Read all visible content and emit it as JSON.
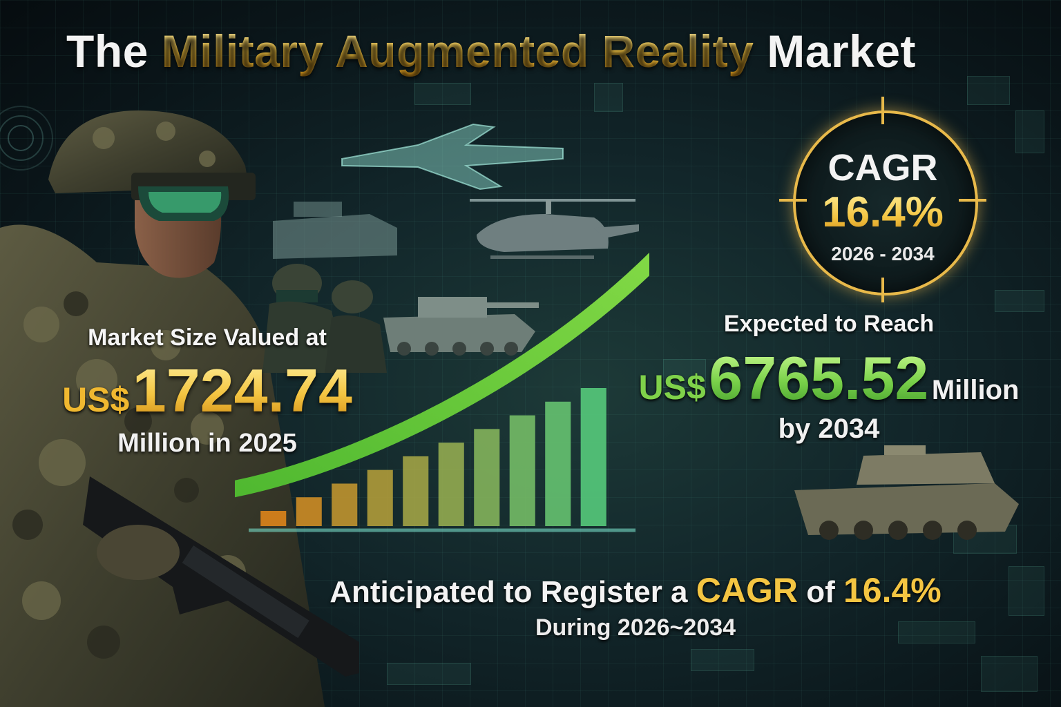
{
  "title": {
    "part1": "The",
    "part2": "Military Augmented Reality",
    "part3": "Market"
  },
  "left_stat": {
    "label": "Market Size Valued at",
    "currency": "US$",
    "amount": "1724.74",
    "sub": "Million in 2025"
  },
  "right_stat": {
    "label": "Expected to Reach",
    "currency": "US$",
    "amount": "6765.52",
    "unit": "Million",
    "sub": "by 2034"
  },
  "cagr_badge": {
    "label": "CAGR",
    "value": "16.4%",
    "period": "2026 - 2034"
  },
  "bottom": {
    "line1_prefix": "Anticipated to Register a",
    "line1_cagr": "CAGR",
    "line1_of": "of",
    "line1_value": "16.4%",
    "line2": "During 2026~2034"
  },
  "colors": {
    "gold": "#f4c542",
    "green": "#7ad14a",
    "bar_start": "#d9821a",
    "bar_end": "#55c77a"
  },
  "chart_data": {
    "type": "bar",
    "values": [
      1,
      2,
      3,
      4,
      5,
      6,
      7,
      8,
      9,
      10
    ],
    "trend_arrow": true
  }
}
